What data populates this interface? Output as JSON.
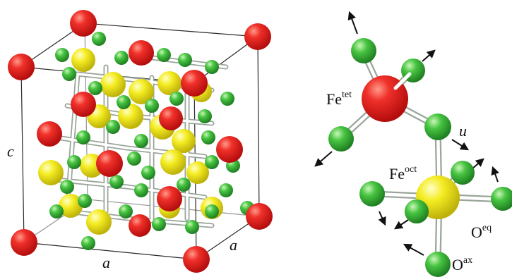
{
  "colors": {
    "fe_tet": "#e81e1e",
    "fe_oct": "#f2ea1c",
    "oxygen": "#3fbf3c",
    "edge": "#2a2a2a",
    "bond": "#9aa59a"
  },
  "unit_cell": {
    "label_c": "c",
    "label_a_bottom": "a",
    "label_a_side": "a"
  },
  "local_structure": {
    "fe_tet": {
      "base": "Fe",
      "sup": "tet"
    },
    "fe_oct": {
      "base": "Fe",
      "sup": "oct"
    },
    "o_eq": {
      "base": "O",
      "sup": "eq"
    },
    "o_ax": {
      "base": "O",
      "sup": "ax"
    },
    "displacement": "u"
  }
}
